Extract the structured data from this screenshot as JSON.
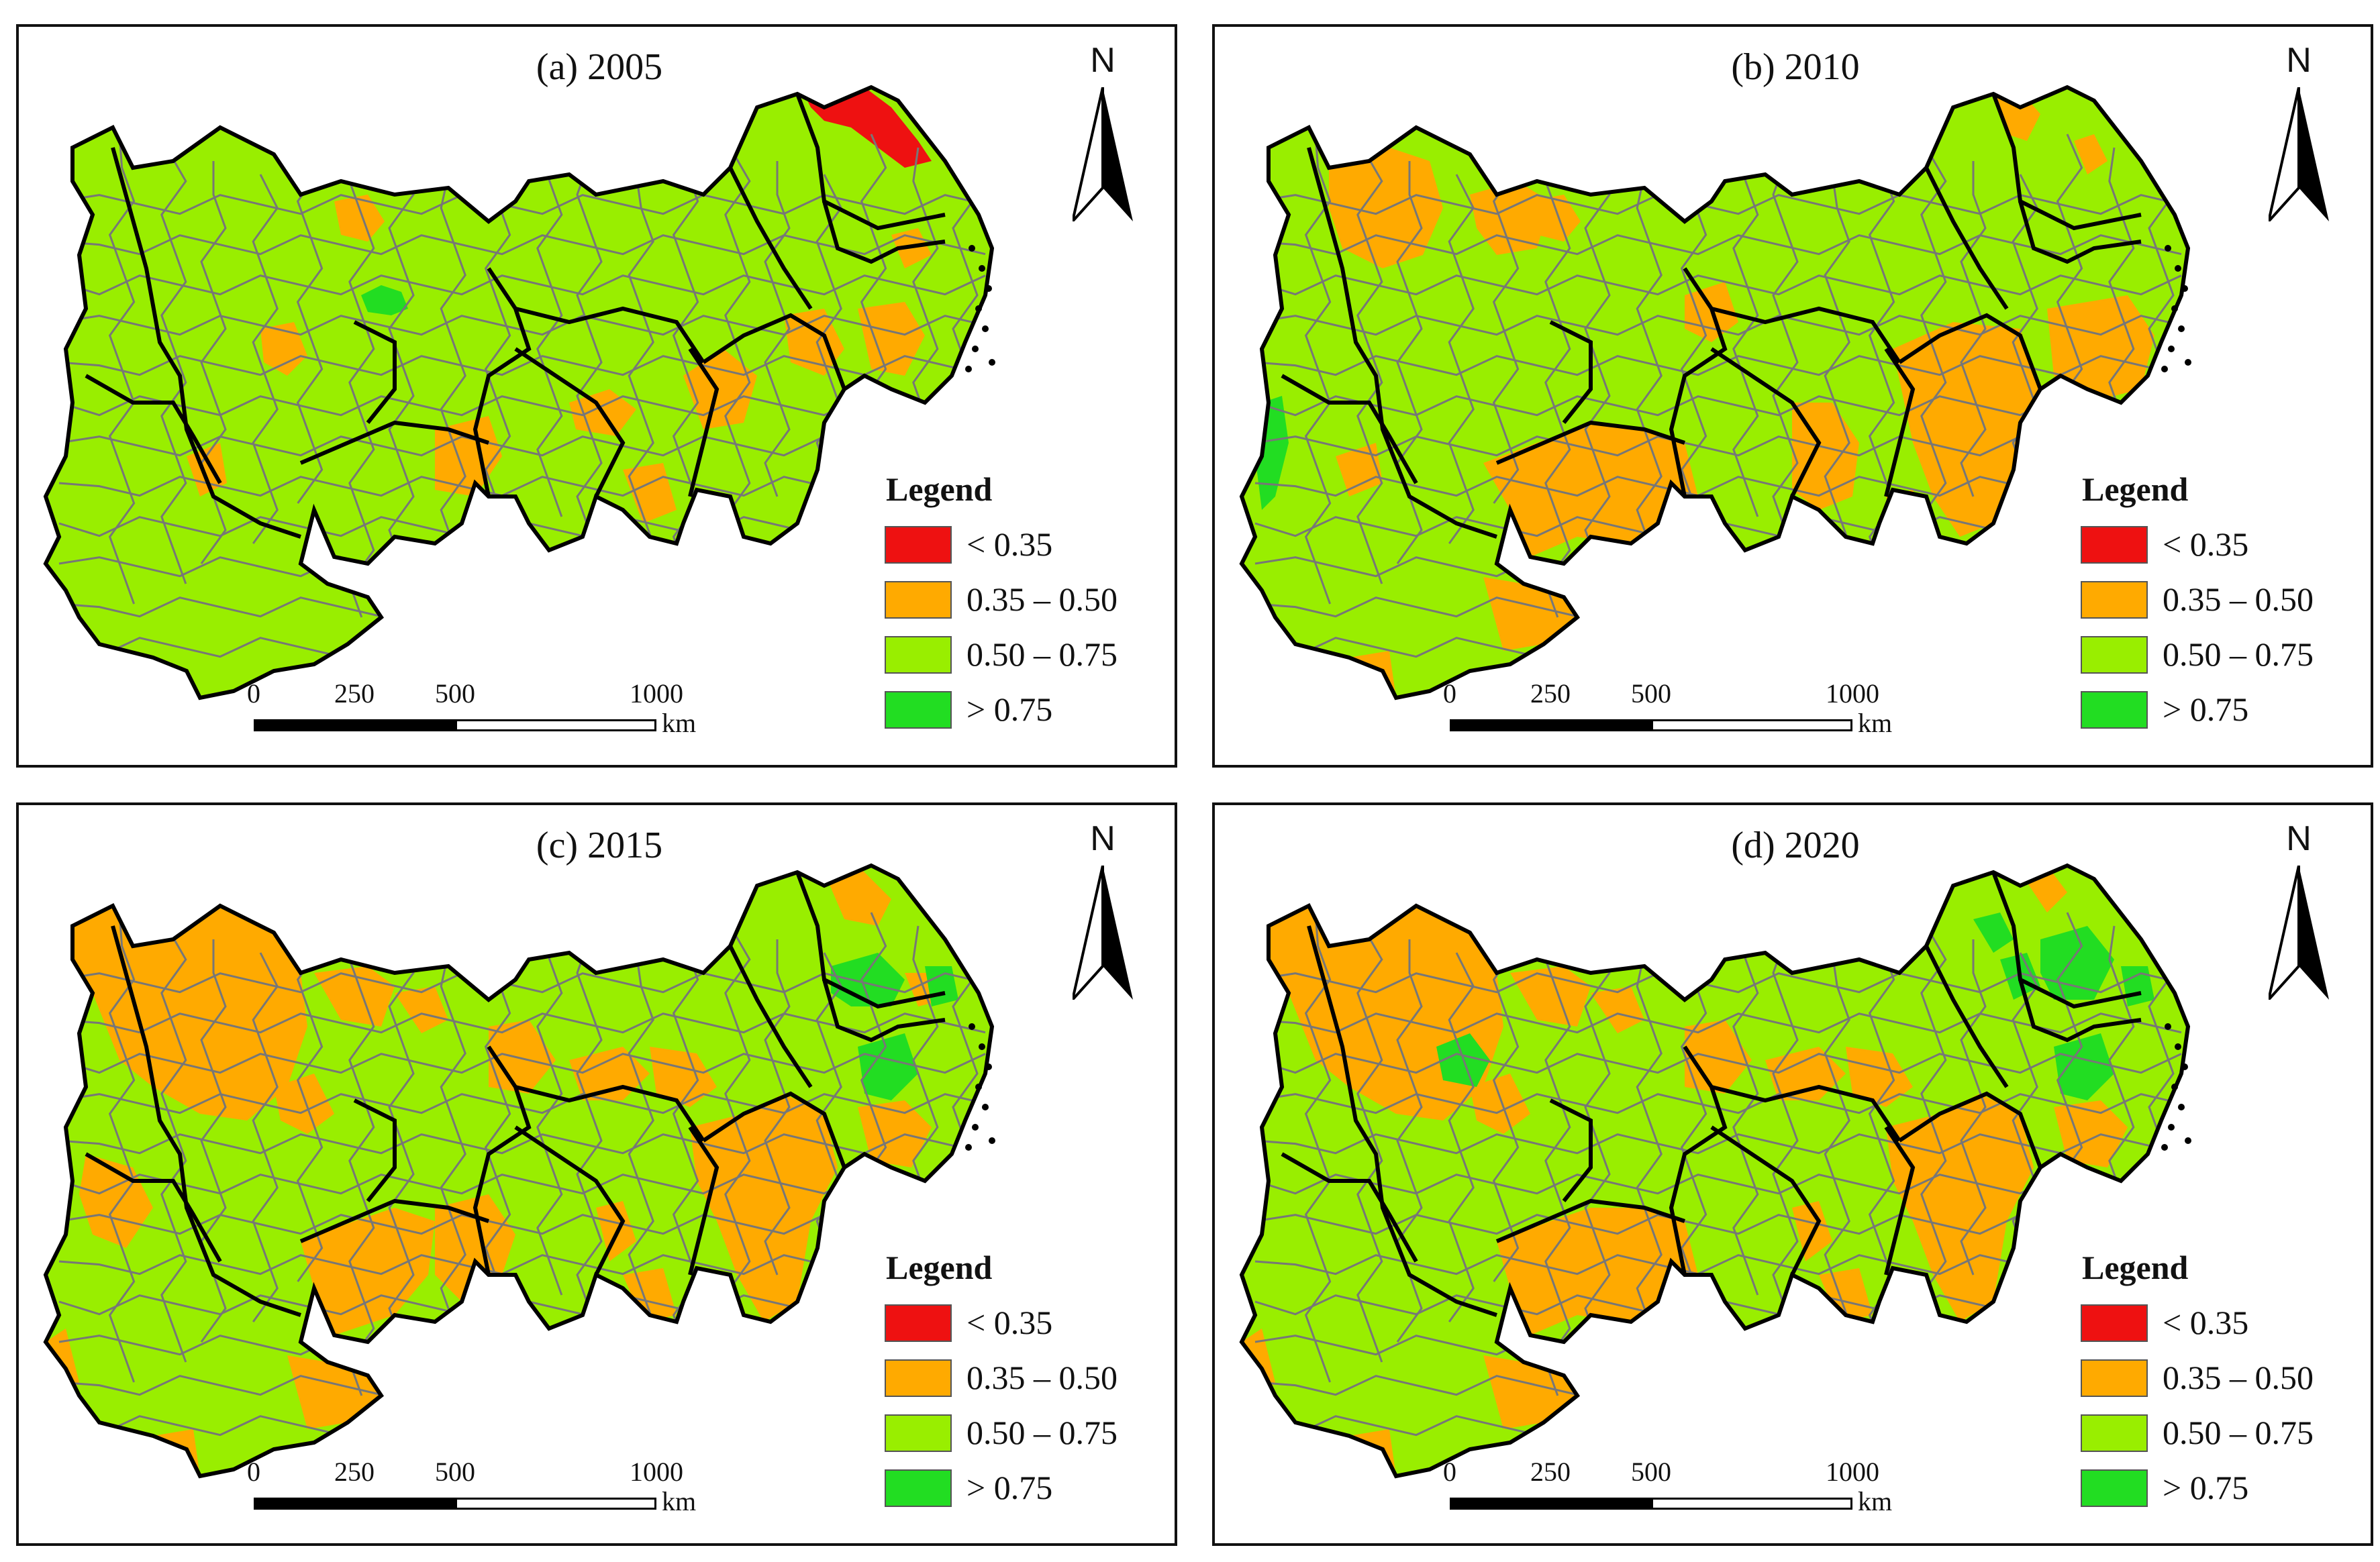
{
  "colors": {
    "red": "#EE1111",
    "orange": "#FFAA00",
    "light_green": "#99EE00",
    "bright_green": "#22DD22",
    "boundary": "#777777",
    "province_boundary": "#000000"
  },
  "legend": {
    "title": "Legend",
    "items": [
      {
        "label": "< 0.35",
        "color": "#EE1111"
      },
      {
        "label": "0.35 – 0.50",
        "color": "#FFAA00"
      },
      {
        "label": "0.50 – 0.75",
        "color": "#99EE00"
      },
      {
        "label": "> 0.75",
        "color": "#22DD22"
      }
    ]
  },
  "north_arrow": {
    "label": "N"
  },
  "scale": {
    "ticks": [
      "0",
      "250",
      "500",
      "1000"
    ],
    "unit": "km"
  },
  "panels": [
    {
      "title": "(a) 2005"
    },
    {
      "title": "(b) 2010"
    },
    {
      "title": "(c) 2015"
    },
    {
      "title": "(d) 2020"
    }
  ]
}
